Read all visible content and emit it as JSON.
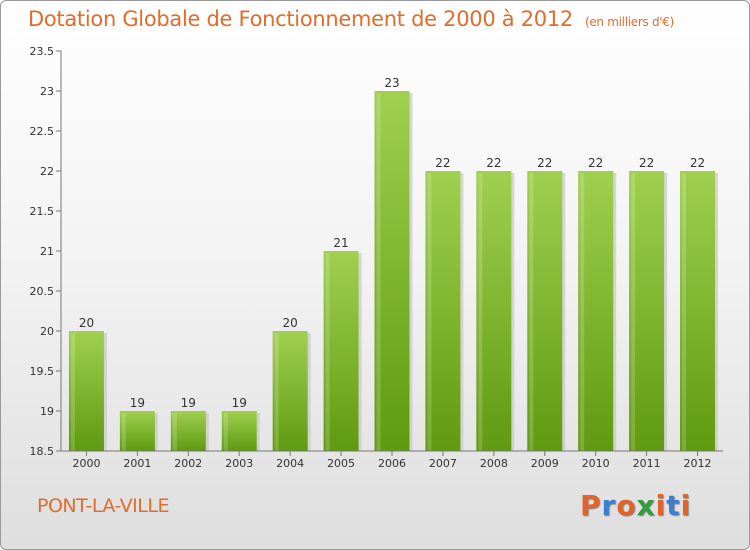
{
  "header": {
    "title": "Dotation Globale de Fonctionnement de 2000 à 2012",
    "unit": "(en milliers d'€)"
  },
  "footer": {
    "commune": "PONT-LA-VILLE",
    "logo": "Proxiti",
    "logo_colors": [
      "#e0642a",
      "#3a7fd0",
      "#e0642a",
      "#2f9e3a",
      "#e0642a",
      "#3a7fd0",
      "#e0642a"
    ]
  },
  "colors": {
    "bar_top": "#9fd04f",
    "bar_bottom": "#5f9a10",
    "title": "#e06d2b"
  },
  "chart_data": {
    "type": "bar",
    "categories": [
      "2000",
      "2001",
      "2002",
      "2003",
      "2004",
      "2005",
      "2006",
      "2007",
      "2008",
      "2009",
      "2010",
      "2011",
      "2012"
    ],
    "values": [
      20,
      19,
      19,
      19,
      20,
      21,
      23,
      22,
      22,
      22,
      22,
      22,
      22
    ],
    "data_labels": [
      "20",
      "19",
      "19",
      "19",
      "20",
      "21",
      "23",
      "22",
      "22",
      "22",
      "22",
      "22",
      "22"
    ],
    "ylim": [
      18.5,
      23.5
    ],
    "yticks": [
      18.5,
      19,
      19.5,
      20,
      20.5,
      21,
      21.5,
      22,
      22.5,
      23,
      23.5
    ],
    "ytick_labels": [
      "18.5",
      "19",
      "19.5",
      "20",
      "20.5",
      "21",
      "21.5",
      "22",
      "22.5",
      "23",
      "23.5"
    ],
    "grid": false,
    "legend": "none"
  }
}
